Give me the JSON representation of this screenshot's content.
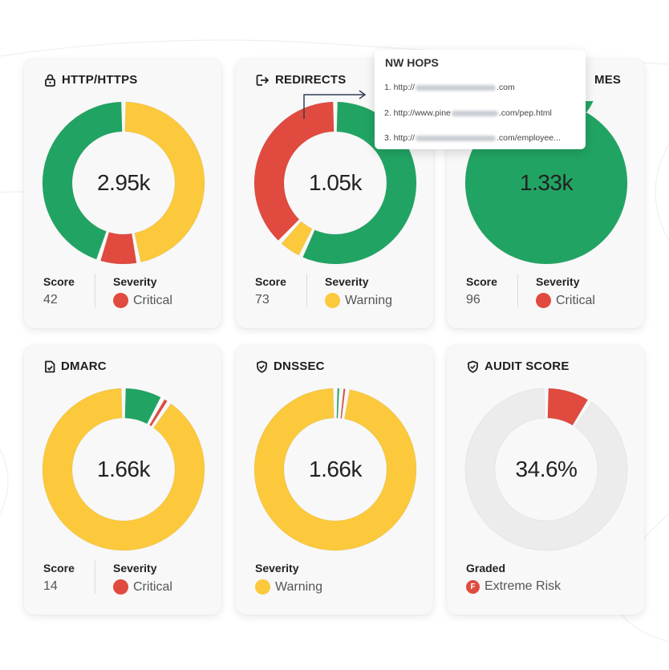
{
  "colors": {
    "green": "#21a463",
    "yellow": "#fbc93b",
    "red": "#e04a3f",
    "gray": "#ececec"
  },
  "cards": [
    {
      "title": "HTTP/HTTPS",
      "icon": "lock-icon",
      "center": "2.95k",
      "score_label": "Score",
      "score": "42",
      "severity_label": "Severity",
      "severity": "Critical",
      "severity_level": "critical"
    },
    {
      "title": "REDIRECTS",
      "icon": "redirect-icon",
      "center": "1.05k",
      "score_label": "Score",
      "score": "73",
      "severity_label": "Severity",
      "severity": "Warning",
      "severity_level": "warning"
    },
    {
      "title": "MES",
      "icon": "",
      "center": "1.33k",
      "score_label": "Score",
      "score": "96",
      "severity_label": "Severity",
      "severity": "Critical",
      "severity_level": "critical"
    },
    {
      "title": "DMARC",
      "icon": "document-check-icon",
      "center": "1.66k",
      "score_label": "Score",
      "score": "14",
      "severity_label": "Severity",
      "severity": "Critical",
      "severity_level": "critical"
    },
    {
      "title": "DNSSEC",
      "icon": "shield-icon",
      "center": "1.66k",
      "severity_label": "Severity",
      "severity": "Warning",
      "severity_level": "warning"
    },
    {
      "title": "AUDIT SCORE",
      "icon": "shield-icon",
      "center": "34.6%",
      "graded_label": "Graded",
      "grade_letter": "F",
      "grade": "Extreme Risk"
    }
  ],
  "donuts": [
    [
      {
        "color": "yellow",
        "frac": 0.47
      },
      {
        "color": "red",
        "frac": 0.08
      },
      {
        "color": "green",
        "frac": 0.45
      }
    ],
    [
      {
        "color": "green",
        "frac": 0.57
      },
      {
        "color": "yellow",
        "frac": 0.05
      },
      {
        "color": "red",
        "frac": 0.38
      }
    ],
    [
      {
        "color": "green",
        "frac": 1.0
      }
    ],
    [
      {
        "color": "green",
        "frac": 0.08
      },
      {
        "color": "red",
        "frac": 0.015
      },
      {
        "color": "yellow",
        "frac": 0.905
      }
    ],
    [
      {
        "color": "green",
        "frac": 0.012
      },
      {
        "color": "red",
        "frac": 0.012
      },
      {
        "color": "yellow",
        "frac": 0.976
      }
    ],
    [
      {
        "color": "red",
        "frac": 0.09
      },
      {
        "color": "gray",
        "frac": 0.91
      }
    ]
  ],
  "popup": {
    "title": "NW HOPS",
    "hops": [
      {
        "prefix": "1. http://",
        "suffix": ".com"
      },
      {
        "prefix": "2. http://www.pine",
        "suffix": ".com/pep.html"
      },
      {
        "prefix": "3. http://",
        "suffix": ".com/employee..."
      }
    ]
  }
}
